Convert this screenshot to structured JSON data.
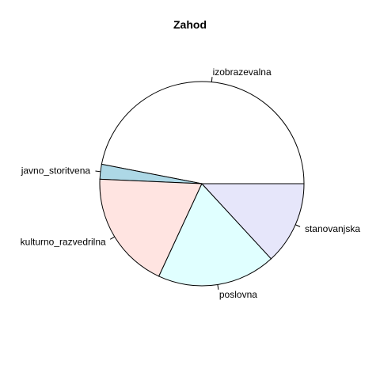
{
  "chart_data": {
    "type": "pie",
    "title": "Zahod",
    "start_angle_deg": 0,
    "direction": "counterclockwise",
    "border_color": "#000000",
    "slices": [
      {
        "label": "izobrazevalna",
        "value": 50.0,
        "color": "#ffffff"
      },
      {
        "label": "javno_storitvena",
        "value": 2.5,
        "color": "#add8e6"
      },
      {
        "label": "kulturno_razvedrilna",
        "value": 20.0,
        "color": "#ffe4e1"
      },
      {
        "label": "poslovna",
        "value": 20.0,
        "color": "#e0ffff"
      },
      {
        "label": "stanovanjska",
        "value": 14.0,
        "color": "#e6e6fa"
      }
    ]
  }
}
